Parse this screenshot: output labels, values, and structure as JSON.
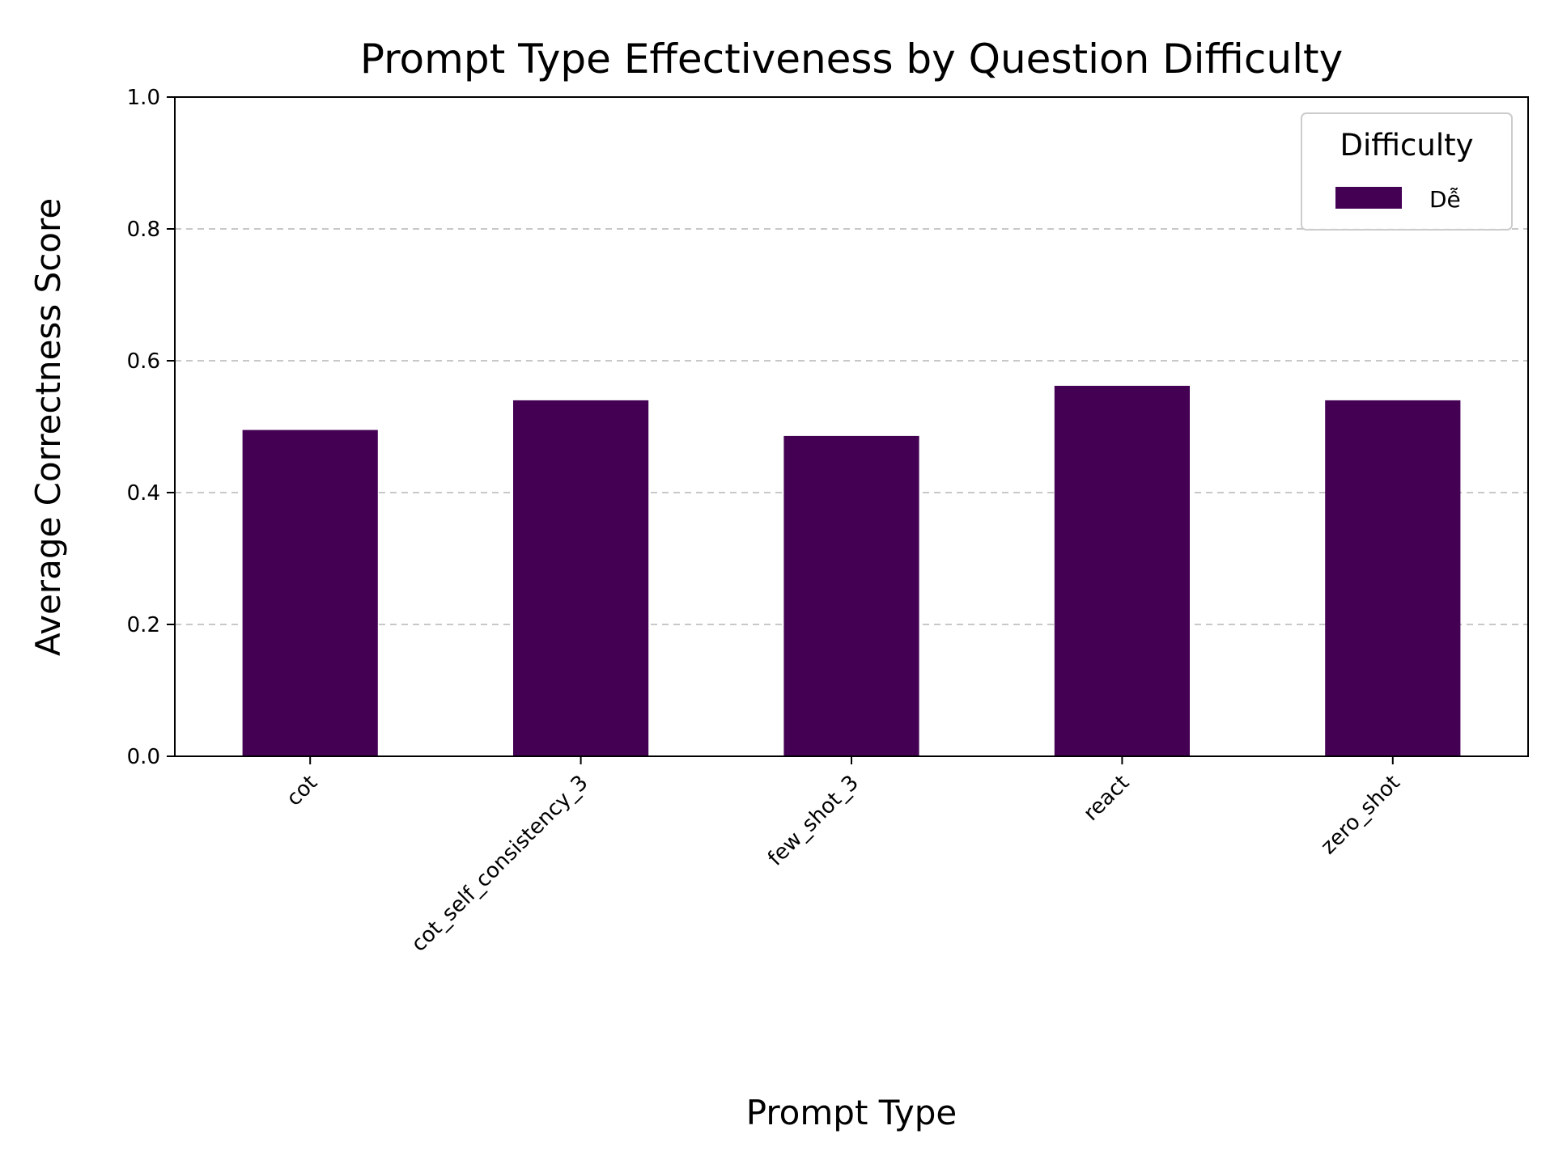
{
  "chart_data": {
    "type": "bar",
    "title": "Prompt Type Effectiveness by Question Difficulty",
    "xlabel": "Prompt Type",
    "ylabel": "Average Correctness Score",
    "categories": [
      "cot",
      "cot_self_consistency_3",
      "few_shot_3",
      "react",
      "zero_shot"
    ],
    "series": [
      {
        "name": "Dễ",
        "color": "#440154",
        "values": [
          0.495,
          0.54,
          0.486,
          0.562,
          0.54
        ]
      }
    ],
    "ylim": [
      0,
      1.0
    ],
    "yticks": [
      "0.0",
      "0.2",
      "0.4",
      "0.6",
      "0.8",
      "1.0"
    ],
    "grid": {
      "axis": "y",
      "style": "dashed"
    },
    "legend": {
      "title": "Difficulty",
      "placement": "top-right"
    }
  }
}
